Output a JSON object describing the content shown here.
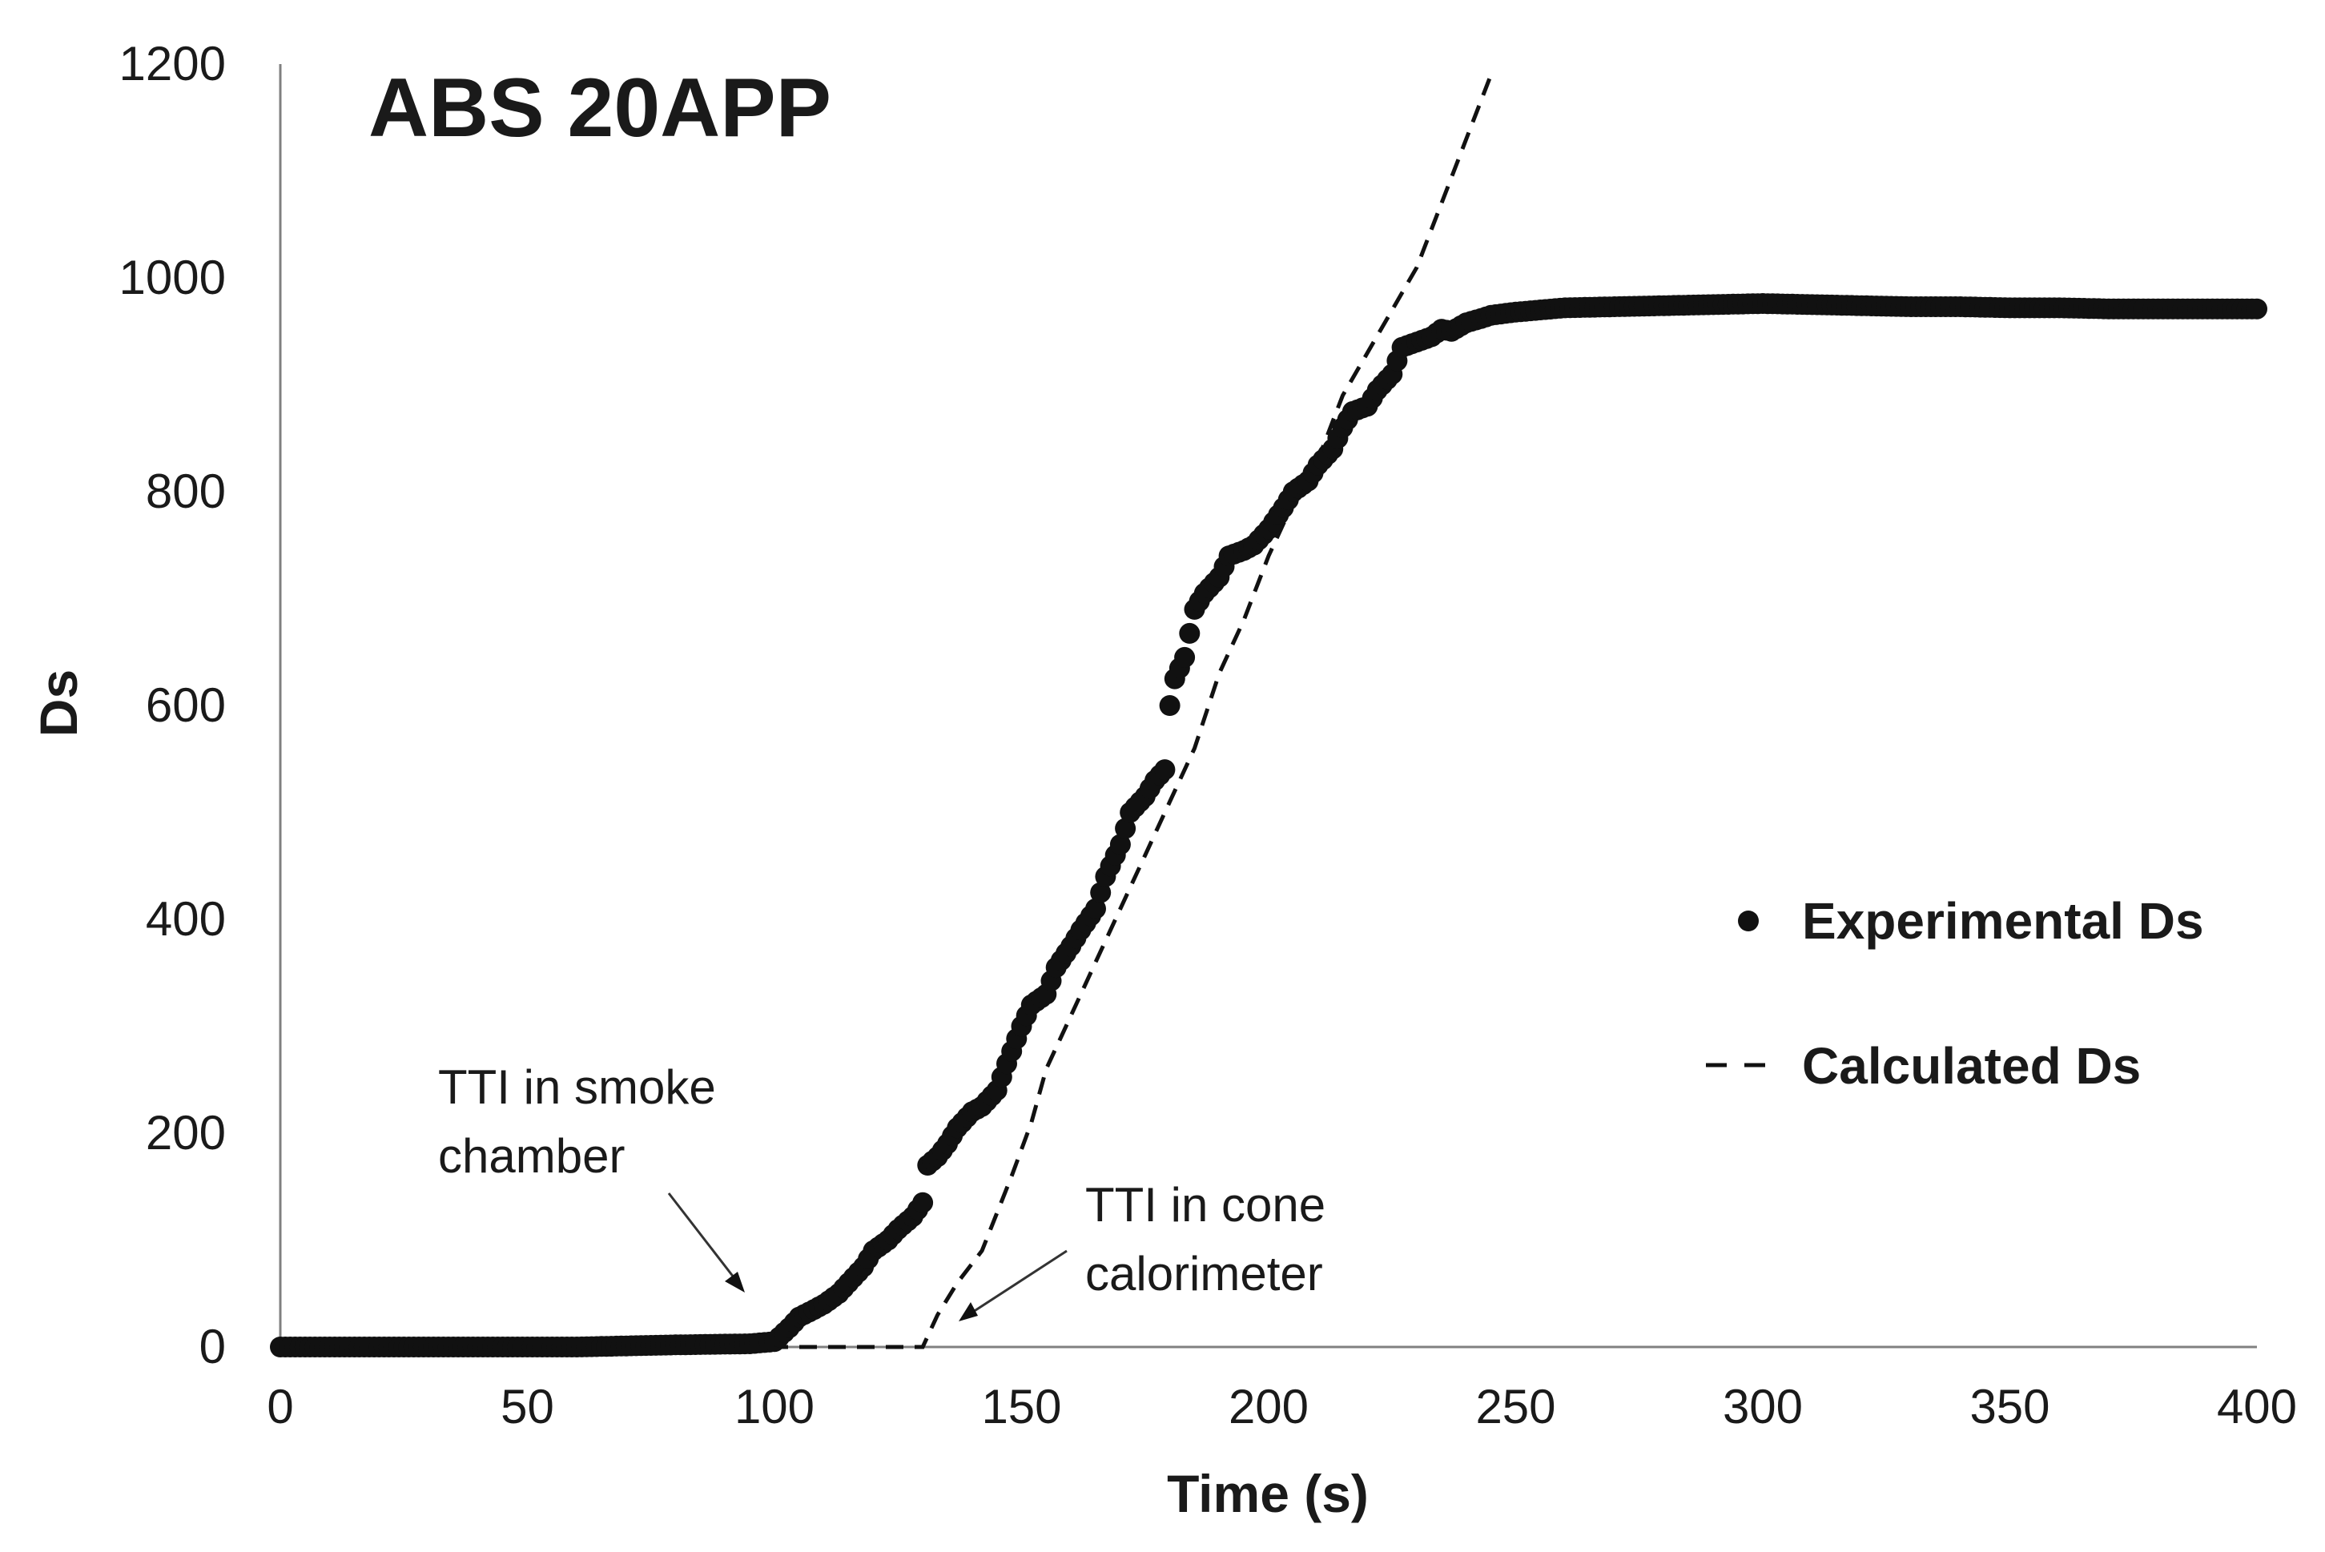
{
  "chart_data": {
    "type": "scatter",
    "title": "ABS 20APP",
    "xlabel": "Time (s)",
    "ylabel": "Ds",
    "xlim": [
      0,
      400
    ],
    "ylim": [
      0,
      1200
    ],
    "xticks": [
      0,
      50,
      100,
      150,
      200,
      250,
      300,
      350,
      400
    ],
    "yticks": [
      0,
      200,
      400,
      600,
      800,
      1000,
      1200
    ],
    "grid": false,
    "legend_position": "right",
    "series": [
      {
        "name": "Experimental Ds",
        "style": "markers",
        "color": "#111111",
        "x": [
          0,
          20,
          40,
          60,
          80,
          95,
          100,
          103,
          105,
          108,
          110,
          113,
          115,
          118,
          120,
          123,
          125,
          128,
          130,
          131,
          133,
          135,
          137,
          140,
          142,
          145,
          147,
          150,
          152,
          155,
          157,
          160,
          162,
          165,
          167,
          170,
          172,
          175,
          177,
          179,
          180,
          181,
          183,
          185,
          187,
          190,
          192,
          195,
          197,
          200,
          203,
          205,
          208,
          210,
          213,
          215,
          217,
          220,
          222,
          225,
          227,
          230,
          233,
          235,
          237,
          240,
          243,
          245,
          250,
          255,
          260,
          270,
          280,
          290,
          300,
          310,
          320,
          330,
          340,
          350,
          360,
          370,
          380,
          390,
          400
        ],
        "y": [
          0,
          0,
          0,
          0,
          2,
          3,
          5,
          18,
          28,
          35,
          40,
          50,
          60,
          75,
          90,
          100,
          110,
          122,
          135,
          170,
          178,
          190,
          205,
          220,
          225,
          240,
          265,
          300,
          320,
          330,
          355,
          375,
          390,
          410,
          440,
          470,
          500,
          515,
          530,
          540,
          600,
          625,
          645,
          690,
          705,
          720,
          740,
          745,
          750,
          765,
          785,
          800,
          810,
          825,
          840,
          860,
          875,
          880,
          895,
          910,
          935,
          940,
          945,
          952,
          950,
          958,
          962,
          965,
          968,
          970,
          972,
          973,
          974,
          975,
          976,
          975,
          974,
          973,
          973,
          972,
          972,
          971,
          971,
          971,
          971
        ]
      },
      {
        "name": "Calculated Ds",
        "style": "dashed",
        "color": "#111111",
        "x": [
          0,
          100,
          125,
          130,
          133,
          137,
          142,
          148,
          152,
          155,
          160,
          165,
          170,
          175,
          180,
          185,
          190,
          195,
          200,
          205,
          210,
          215,
          220,
          225,
          230,
          235,
          240,
          245
        ],
        "y": [
          0,
          0,
          0,
          0,
          30,
          60,
          90,
          160,
          210,
          260,
          310,
          360,
          410,
          460,
          510,
          560,
          630,
          680,
          740,
          790,
          830,
          890,
          930,
          970,
          1010,
          1070,
          1130,
          1190
        ]
      }
    ],
    "annotations": [
      {
        "text_lines": [
          "TTI in smoke",
          "chamber"
        ],
        "points_to": [
          100,
          0
        ]
      },
      {
        "text_lines": [
          "TTI in cone",
          "calorimeter"
        ],
        "points_to": [
          137,
          40
        ]
      }
    ]
  }
}
